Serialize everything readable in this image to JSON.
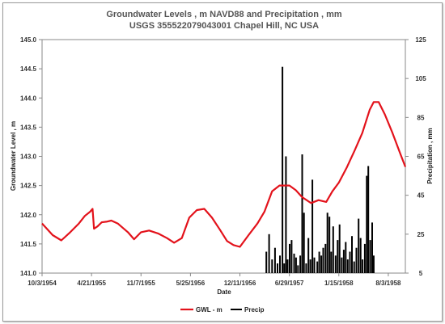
{
  "chart_data": {
    "type": "line",
    "title": "Groundwater Levels , m NAVD88 and Precipitation , mm",
    "subtitle": "USGS 355522079043001 Chapel Hill, NC USA",
    "xlabel": "Date",
    "ylabel": "Groundwater Level , m",
    "y2label": "Precipitation , mm",
    "xlim": [
      "1954-10-03",
      "1958-10-11"
    ],
    "ylim": [
      141.0,
      145.0
    ],
    "y2lim": [
      5,
      125
    ],
    "grid": false,
    "legend_position": "bottom",
    "x_ticks": [
      "10/3/1954",
      "4/21/1955",
      "11/7/1955",
      "5/25/1956",
      "12/11/1956",
      "6/29/1957",
      "1/15/1958",
      "8/3/1958"
    ],
    "y_ticks": [
      "141.0",
      "141.5",
      "142.0",
      "142.5",
      "143.0",
      "143.5",
      "144.0",
      "144.5",
      "145.0"
    ],
    "y2_ticks": [
      "5",
      "25",
      "45",
      "65",
      "85",
      "105",
      "125"
    ],
    "colors": {
      "gwl": "#e3121b",
      "precip": "#000000",
      "axis": "#888888"
    },
    "series": [
      {
        "name": "GWL - m",
        "kind": "line",
        "axis": "left",
        "points": [
          [
            "1954-10-03",
            141.85
          ],
          [
            "1954-11-15",
            141.65
          ],
          [
            "1954-12-20",
            141.56
          ],
          [
            "1955-01-25",
            141.7
          ],
          [
            "1955-03-01",
            141.85
          ],
          [
            "1955-03-25",
            141.98
          ],
          [
            "1955-04-15",
            142.05
          ],
          [
            "1955-04-25",
            142.1
          ],
          [
            "1955-05-01",
            141.76
          ],
          [
            "1955-05-15",
            141.8
          ],
          [
            "1955-06-01",
            141.87
          ],
          [
            "1955-06-20",
            141.88
          ],
          [
            "1955-07-10",
            141.9
          ],
          [
            "1955-08-05",
            141.85
          ],
          [
            "1955-09-15",
            141.7
          ],
          [
            "1955-10-10",
            141.58
          ],
          [
            "1955-11-07",
            141.7
          ],
          [
            "1955-12-10",
            141.73
          ],
          [
            "1956-01-15",
            141.68
          ],
          [
            "1956-02-20",
            141.6
          ],
          [
            "1956-03-20",
            141.52
          ],
          [
            "1956-04-20",
            141.6
          ],
          [
            "1956-05-20",
            141.95
          ],
          [
            "1956-06-20",
            142.08
          ],
          [
            "1956-07-20",
            142.1
          ],
          [
            "1956-08-20",
            141.95
          ],
          [
            "1956-09-20",
            141.75
          ],
          [
            "1956-10-20",
            141.55
          ],
          [
            "1956-11-15",
            141.48
          ],
          [
            "1956-12-11",
            141.45
          ],
          [
            "1957-01-15",
            141.65
          ],
          [
            "1957-02-20",
            141.85
          ],
          [
            "1957-03-20",
            142.05
          ],
          [
            "1957-04-20",
            142.4
          ],
          [
            "1957-05-20",
            142.5
          ],
          [
            "1957-06-29",
            142.5
          ],
          [
            "1957-07-25",
            142.42
          ],
          [
            "1957-08-20",
            142.3
          ],
          [
            "1957-09-25",
            142.2
          ],
          [
            "1957-10-25",
            142.25
          ],
          [
            "1957-11-25",
            142.22
          ],
          [
            "1957-12-20",
            142.4
          ],
          [
            "1958-01-15",
            142.55
          ],
          [
            "1958-02-15",
            142.8
          ],
          [
            "1958-03-20",
            143.1
          ],
          [
            "1958-04-20",
            143.4
          ],
          [
            "1958-05-20",
            143.8
          ],
          [
            "1958-06-05",
            143.93
          ],
          [
            "1958-06-25",
            143.93
          ],
          [
            "1958-07-20",
            143.72
          ],
          [
            "1958-08-20",
            143.4
          ],
          [
            "1958-09-20",
            143.05
          ],
          [
            "1958-10-11",
            142.82
          ]
        ]
      },
      {
        "name": "Precip",
        "kind": "bar",
        "axis": "right",
        "points": [
          [
            "1957-03-28",
            16
          ],
          [
            "1957-04-08",
            25
          ],
          [
            "1957-04-20",
            12
          ],
          [
            "1957-05-02",
            18
          ],
          [
            "1957-05-12",
            10
          ],
          [
            "1957-05-22",
            14
          ],
          [
            "1957-06-01",
            111
          ],
          [
            "1957-06-08",
            10
          ],
          [
            "1957-06-15",
            65
          ],
          [
            "1957-06-22",
            12
          ],
          [
            "1957-06-30",
            20
          ],
          [
            "1957-07-08",
            22
          ],
          [
            "1957-07-18",
            15
          ],
          [
            "1957-07-26",
            13
          ],
          [
            "1957-08-03",
            9
          ],
          [
            "1957-08-12",
            14
          ],
          [
            "1957-08-20",
            66
          ],
          [
            "1957-08-27",
            36
          ],
          [
            "1957-09-05",
            10
          ],
          [
            "1957-09-14",
            23
          ],
          [
            "1957-09-22",
            12
          ],
          [
            "1957-09-30",
            53
          ],
          [
            "1957-10-08",
            13
          ],
          [
            "1957-10-20",
            11
          ],
          [
            "1957-10-28",
            16
          ],
          [
            "1957-11-05",
            14
          ],
          [
            "1957-11-13",
            18
          ],
          [
            "1957-11-22",
            20
          ],
          [
            "1957-11-30",
            36
          ],
          [
            "1957-12-08",
            34
          ],
          [
            "1957-12-15",
            16
          ],
          [
            "1957-12-23",
            29
          ],
          [
            "1958-01-02",
            14
          ],
          [
            "1958-01-10",
            22
          ],
          [
            "1958-01-18",
            30
          ],
          [
            "1958-01-27",
            13
          ],
          [
            "1958-02-04",
            17
          ],
          [
            "1958-02-12",
            21
          ],
          [
            "1958-02-20",
            12
          ],
          [
            "1958-03-01",
            16
          ],
          [
            "1958-03-09",
            24
          ],
          [
            "1958-03-18",
            11
          ],
          [
            "1958-03-27",
            18
          ],
          [
            "1958-04-05",
            33
          ],
          [
            "1958-04-13",
            23
          ],
          [
            "1958-04-21",
            12
          ],
          [
            "1958-04-30",
            20
          ],
          [
            "1958-05-08",
            55
          ],
          [
            "1958-05-14",
            60
          ],
          [
            "1958-05-22",
            22
          ],
          [
            "1958-05-30",
            31
          ],
          [
            "1958-06-05",
            14
          ]
        ]
      }
    ]
  }
}
